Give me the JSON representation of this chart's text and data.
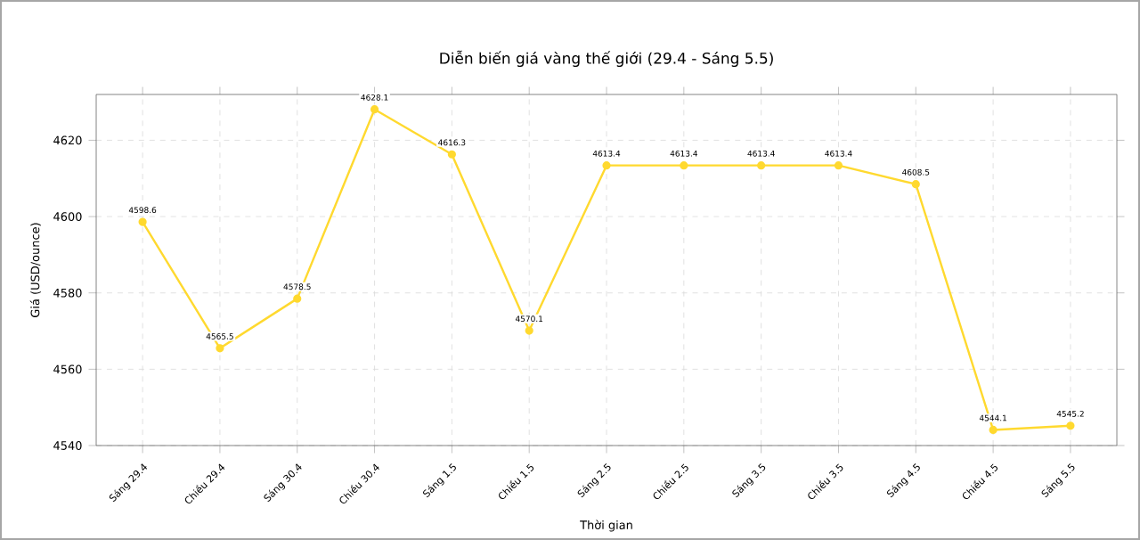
{
  "chart_data": {
    "type": "line",
    "title": "Diễn biến giá vàng thế giới (29.4 - Sáng 5.5)",
    "xlabel": "Thời gian",
    "ylabel": "Giá (USD/ounce)",
    "categories": [
      "Sáng 29.4",
      "Chiều 29.4",
      "Sáng 30.4",
      "Chiều 30.4",
      "Sáng 1.5",
      "Chiều 1.5",
      "Sáng 2.5",
      "Chiều 2.5",
      "Sáng 3.5",
      "Chiều 3.5",
      "Sáng 4.5",
      "Chiều 4.5",
      "Sáng 5.5"
    ],
    "values": [
      4598.6,
      4565.5,
      4578.5,
      4628.1,
      4616.3,
      4570.1,
      4613.4,
      4613.4,
      4613.4,
      4613.4,
      4608.5,
      4544.1,
      4545.2
    ],
    "value_labels": [
      "4598.6",
      "4565.5",
      "4578.5",
      "4628.1",
      "4616.3",
      "4570.1",
      "4613.4",
      "4613.4",
      "4613.4",
      "4613.4",
      "4608.5",
      "4544.1",
      "4545.2"
    ],
    "color": "#ffd92f",
    "marker": "circle",
    "line_style": "solid",
    "grid": true,
    "ylim": [
      4540,
      4632
    ],
    "yticks": [
      4540,
      4560,
      4580,
      4600,
      4620
    ]
  }
}
